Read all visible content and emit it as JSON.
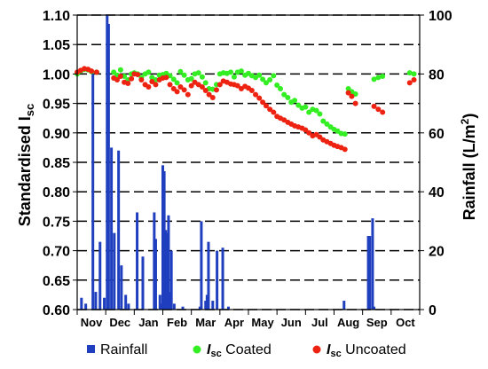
{
  "chart_data": {
    "type": "scatter",
    "y_left_label": "Standardised I",
    "y_left_label_sub": "sc",
    "y_right_label": "Rainfall (L/m",
    "y_right_label_sup": "2",
    "y_right_label_end": ")",
    "ylim_left": [
      0.6,
      1.1
    ],
    "ylim_right": [
      0,
      100
    ],
    "y_left_ticks": [
      "0.60",
      "0.65",
      "0.70",
      "0.75",
      "0.80",
      "0.85",
      "0.90",
      "0.95",
      "1.00",
      "1.05",
      "1.10"
    ],
    "y_right_ticks": [
      "0",
      "20",
      "40",
      "60",
      "80",
      "100"
    ],
    "months": [
      "Nov",
      "Dec",
      "Jan",
      "Feb",
      "Mar",
      "Apr",
      "May",
      "Jun",
      "Jul",
      "Aug",
      "Sep",
      "Oct"
    ],
    "grid": "horizontal dashed",
    "legend_position": "bottom",
    "legend": [
      {
        "label": "Rainfall",
        "color": "#1f3fbf",
        "marker": "square"
      },
      {
        "label_bold": "I",
        "label_sub": "sc",
        "label_rest": " Coated",
        "color": "#33ee22",
        "marker": "circle"
      },
      {
        "label_bold": "I",
        "label_sub": "sc",
        "label_rest": " Uncoated",
        "color": "#ee2211",
        "marker": "circle"
      }
    ],
    "rainfall": {
      "name": "Rainfall",
      "color": "#1f3fbf",
      "x_month": [
        0.15,
        0.3,
        0.55,
        0.65,
        0.8,
        0.95,
        1.05,
        1.1,
        1.2,
        1.3,
        1.45,
        1.55,
        1.7,
        1.8,
        2.1,
        2.3,
        2.7,
        2.75,
        2.9,
        2.95,
        3.0,
        3.05,
        3.1,
        3.15,
        3.2,
        3.25,
        3.3,
        3.4,
        3.7,
        4.3,
        4.35,
        4.5,
        4.55,
        4.6,
        4.75,
        4.9,
        5.1,
        5.3,
        9.35,
        10.2,
        10.25,
        10.35,
        10.4
      ],
      "values": [
        4,
        2,
        80,
        6,
        23,
        4,
        100,
        97,
        55,
        26,
        54,
        15,
        5,
        2,
        33,
        18,
        33,
        24,
        5,
        2,
        49,
        47,
        27,
        26,
        32,
        6,
        20,
        2,
        1,
        1,
        30,
        3,
        5,
        23,
        3,
        20,
        21,
        1,
        3,
        25,
        25,
        31,
        1
      ]
    },
    "coated": {
      "name": "I_sc Coated",
      "color": "#33ee22",
      "x_month": [
        0.0,
        0.12,
        0.25,
        0.38,
        0.5,
        0.68,
        1.28,
        1.4,
        1.52,
        1.65,
        1.78,
        1.9,
        2.0,
        2.12,
        2.25,
        2.38,
        2.5,
        2.62,
        2.75,
        2.88,
        3.0,
        3.12,
        3.25,
        3.38,
        3.5,
        3.62,
        3.75,
        3.88,
        4.0,
        4.12,
        4.25,
        4.38,
        4.5,
        4.62,
        4.75,
        4.88,
        5.0,
        5.12,
        5.25,
        5.38,
        5.5,
        5.62,
        5.75,
        5.88,
        6.0,
        6.12,
        6.25,
        6.38,
        6.5,
        6.62,
        6.75,
        6.88,
        7.0,
        7.12,
        7.25,
        7.38,
        7.5,
        7.62,
        7.75,
        7.88,
        8.0,
        8.12,
        8.25,
        8.38,
        8.5,
        8.62,
        8.75,
        8.88,
        9.0,
        9.12,
        9.25,
        9.38,
        9.5,
        9.62,
        9.75,
        10.4,
        10.55,
        10.7,
        11.65,
        11.8
      ],
      "values": [
        1.0,
        1.005,
        1.008,
        1.007,
        1.004,
        1.003,
        1.003,
        0.998,
        1.007,
        0.996,
        0.99,
        1.0,
        1.002,
        1.0,
        0.994,
        1.0,
        1.003,
        0.994,
        0.99,
        0.998,
        0.999,
        1.001,
        0.997,
        0.991,
        0.985,
        1.004,
        0.998,
        0.99,
        0.992,
        1.0,
        1.002,
        0.995,
        0.985,
        0.975,
        0.974,
        0.982,
        1.0,
        1.002,
        1.001,
        1.003,
        0.995,
        1.003,
        1.005,
        0.998,
        1.001,
        0.997,
        0.994,
        0.998,
        0.991,
        0.985,
        0.99,
        0.997,
        0.981,
        0.975,
        0.965,
        0.96,
        0.952,
        0.955,
        0.947,
        0.942,
        0.944,
        0.935,
        0.94,
        0.938,
        0.932,
        0.92,
        0.915,
        0.91,
        0.906,
        0.903,
        0.899,
        0.898,
        0.975,
        0.97,
        0.966,
        0.991,
        0.994,
        0.996,
        1.002,
        1.0
      ]
    },
    "uncoated": {
      "name": "I_sc Uncoated",
      "color": "#ee2211",
      "x_month": [
        0.0,
        0.12,
        0.25,
        0.38,
        0.5,
        0.68,
        1.28,
        1.4,
        1.52,
        1.65,
        1.78,
        1.9,
        2.0,
        2.12,
        2.25,
        2.38,
        2.5,
        2.62,
        2.75,
        2.88,
        3.0,
        3.12,
        3.25,
        3.38,
        3.5,
        3.62,
        3.75,
        3.88,
        4.0,
        4.12,
        4.25,
        4.38,
        4.5,
        4.62,
        4.75,
        4.88,
        5.0,
        5.12,
        5.25,
        5.38,
        5.5,
        5.62,
        5.75,
        5.88,
        6.0,
        6.12,
        6.25,
        6.38,
        6.5,
        6.62,
        6.75,
        6.88,
        7.0,
        7.12,
        7.25,
        7.38,
        7.5,
        7.62,
        7.75,
        7.88,
        8.0,
        8.12,
        8.25,
        8.38,
        8.5,
        8.62,
        8.75,
        8.88,
        9.0,
        9.12,
        9.25,
        9.38,
        9.5,
        9.62,
        9.75,
        10.4,
        10.55,
        10.7,
        11.65,
        11.8
      ],
      "values": [
        1.003,
        1.006,
        1.009,
        1.008,
        1.005,
        1.003,
        0.993,
        0.99,
        0.996,
        0.986,
        0.984,
        0.992,
        1.0,
        0.999,
        0.99,
        0.982,
        0.978,
        0.987,
        0.982,
        0.99,
        0.993,
        0.994,
        0.982,
        0.975,
        0.97,
        0.978,
        0.973,
        0.965,
        0.98,
        0.986,
        0.982,
        0.978,
        0.972,
        0.965,
        0.96,
        0.973,
        0.982,
        0.988,
        0.986,
        0.983,
        0.982,
        0.98,
        0.975,
        0.979,
        0.976,
        0.972,
        0.965,
        0.959,
        0.952,
        0.946,
        0.94,
        0.935,
        0.928,
        0.925,
        0.922,
        0.918,
        0.915,
        0.912,
        0.91,
        0.908,
        0.905,
        0.9,
        0.895,
        0.897,
        0.893,
        0.888,
        0.885,
        0.882,
        0.879,
        0.877,
        0.875,
        0.872,
        0.968,
        0.962,
        0.95,
        0.945,
        0.94,
        0.935,
        0.985,
        0.99
      ]
    }
  }
}
